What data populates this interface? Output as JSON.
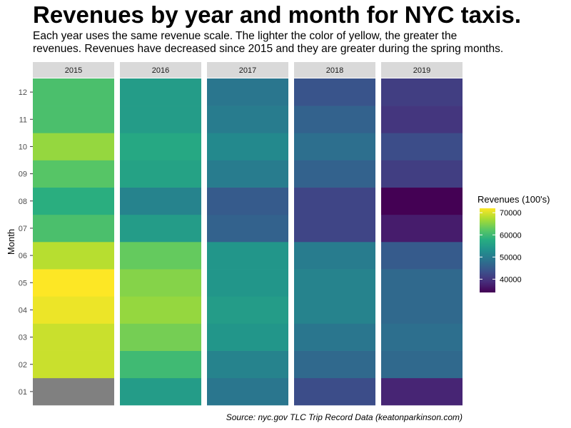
{
  "title": "Revenues by year and month for NYC taxis.",
  "subtitle_lines": [
    "Each year uses the same revenue scale. The lighter the color of yellow, the greater the",
    "revenues. Revenues have decreased since 2015 and they are greater during the spring months."
  ],
  "caption": "Source: nyc.gov TLC Trip Record Data (keatonparkinson.com)",
  "chart_data": {
    "type": "heatmap",
    "ylabel": "Month",
    "facets": [
      "2015",
      "2016",
      "2017",
      "2018",
      "2019"
    ],
    "months": [
      "01",
      "02",
      "03",
      "04",
      "05",
      "06",
      "07",
      "08",
      "09",
      "10",
      "11",
      "12"
    ],
    "values": {
      "2015": [
        null,
        69000,
        69000,
        71000,
        72000,
        68000,
        61000,
        58000,
        62000,
        66000,
        61000,
        61000
      ],
      "2016": [
        55000,
        60000,
        64000,
        66000,
        65000,
        63000,
        55000,
        51000,
        56000,
        57000,
        55000,
        55000
      ],
      "2017": [
        49000,
        51000,
        54000,
        55000,
        54000,
        54000,
        46000,
        45000,
        50000,
        52000,
        50000,
        49000
      ],
      "2018": [
        43000,
        47000,
        49000,
        51000,
        51000,
        50000,
        42000,
        42000,
        46000,
        48000,
        46000,
        44000
      ],
      "2019": [
        38000,
        47000,
        48000,
        47000,
        47000,
        45000,
        37000,
        34000,
        41000,
        43000,
        40000,
        41000
      ]
    },
    "missing_color": "#808080",
    "legend": {
      "title": "Revenues (100's)",
      "placement": "right",
      "ticks": [
        40000,
        50000,
        60000,
        70000
      ],
      "tick_labels": [
        "40000",
        "50000",
        "60000",
        "70000"
      ],
      "range": [
        34000,
        72000
      ]
    },
    "colorscale": "viridis",
    "strip_color": "#d9d9d9"
  }
}
